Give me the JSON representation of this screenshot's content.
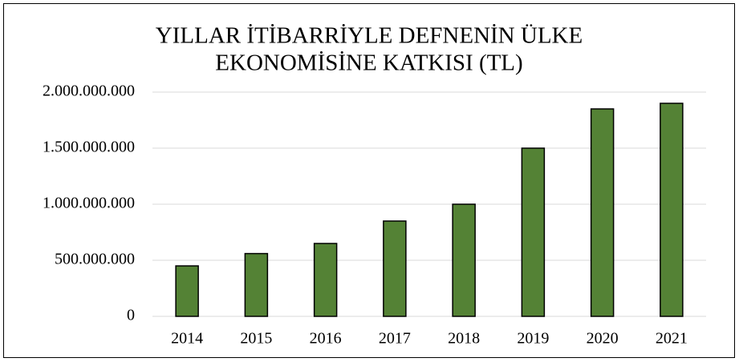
{
  "chart_data": {
    "type": "bar",
    "title": [
      "YILLAR İTİBARRİYLE DEFNENİN ÜLKE",
      "EKONOMİSİNE KATKISI (TL)"
    ],
    "categories": [
      "2014",
      "2015",
      "2016",
      "2017",
      "2018",
      "2019",
      "2020",
      "2021"
    ],
    "values": [
      450000000,
      560000000,
      650000000,
      850000000,
      1000000000,
      1500000000,
      1850000000,
      1900000000
    ],
    "color": "#548235",
    "ylim": [
      0,
      2000000000
    ],
    "yticks": [
      0,
      {
        "value": 500000000,
        "label": "500.000.000"
      },
      {
        "value": 1000000000,
        "label": "1.000.000.000"
      },
      {
        "value": 1500000000,
        "label": "1.500.000.000"
      },
      {
        "value": 2000000000,
        "label": "2.000.000.000"
      }
    ],
    "grid": true
  }
}
